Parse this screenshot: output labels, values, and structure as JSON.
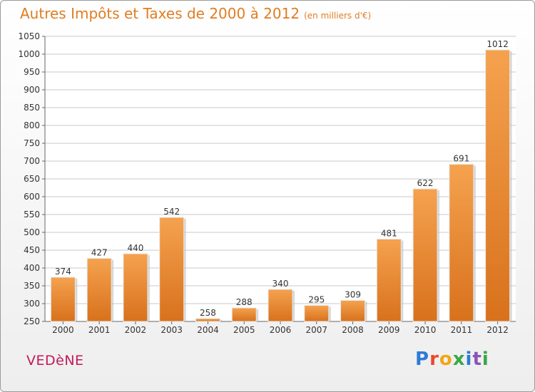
{
  "header": {
    "title": "Autres Impôts et Taxes de 2000 à 2012",
    "unit": "(en milliers d'€)"
  },
  "footer": {
    "city": "VEDèNE",
    "brand": "Proxiti"
  },
  "colors": {
    "bar_light": "#f5a24f",
    "bar_dark": "#d8711c",
    "title": "#e07d22",
    "city": "#c2185b",
    "grid": "#c8c8c8"
  },
  "chart_data": {
    "type": "bar",
    "title": "Autres Impôts et Taxes de 2000 à 2012",
    "subtitle": "(en milliers d'€)",
    "xlabel": "",
    "ylabel": "",
    "categories": [
      "2000",
      "2001",
      "2002",
      "2003",
      "2004",
      "2005",
      "2006",
      "2007",
      "2008",
      "2009",
      "2010",
      "2011",
      "2012"
    ],
    "values": [
      374,
      427,
      440,
      542,
      258,
      288,
      340,
      295,
      309,
      481,
      622,
      691,
      1012
    ],
    "ylim": [
      250,
      1050
    ],
    "yticks": [
      250,
      300,
      350,
      400,
      450,
      500,
      550,
      600,
      650,
      700,
      750,
      800,
      850,
      900,
      950,
      1000,
      1050
    ],
    "grid": true,
    "legend": "none"
  }
}
